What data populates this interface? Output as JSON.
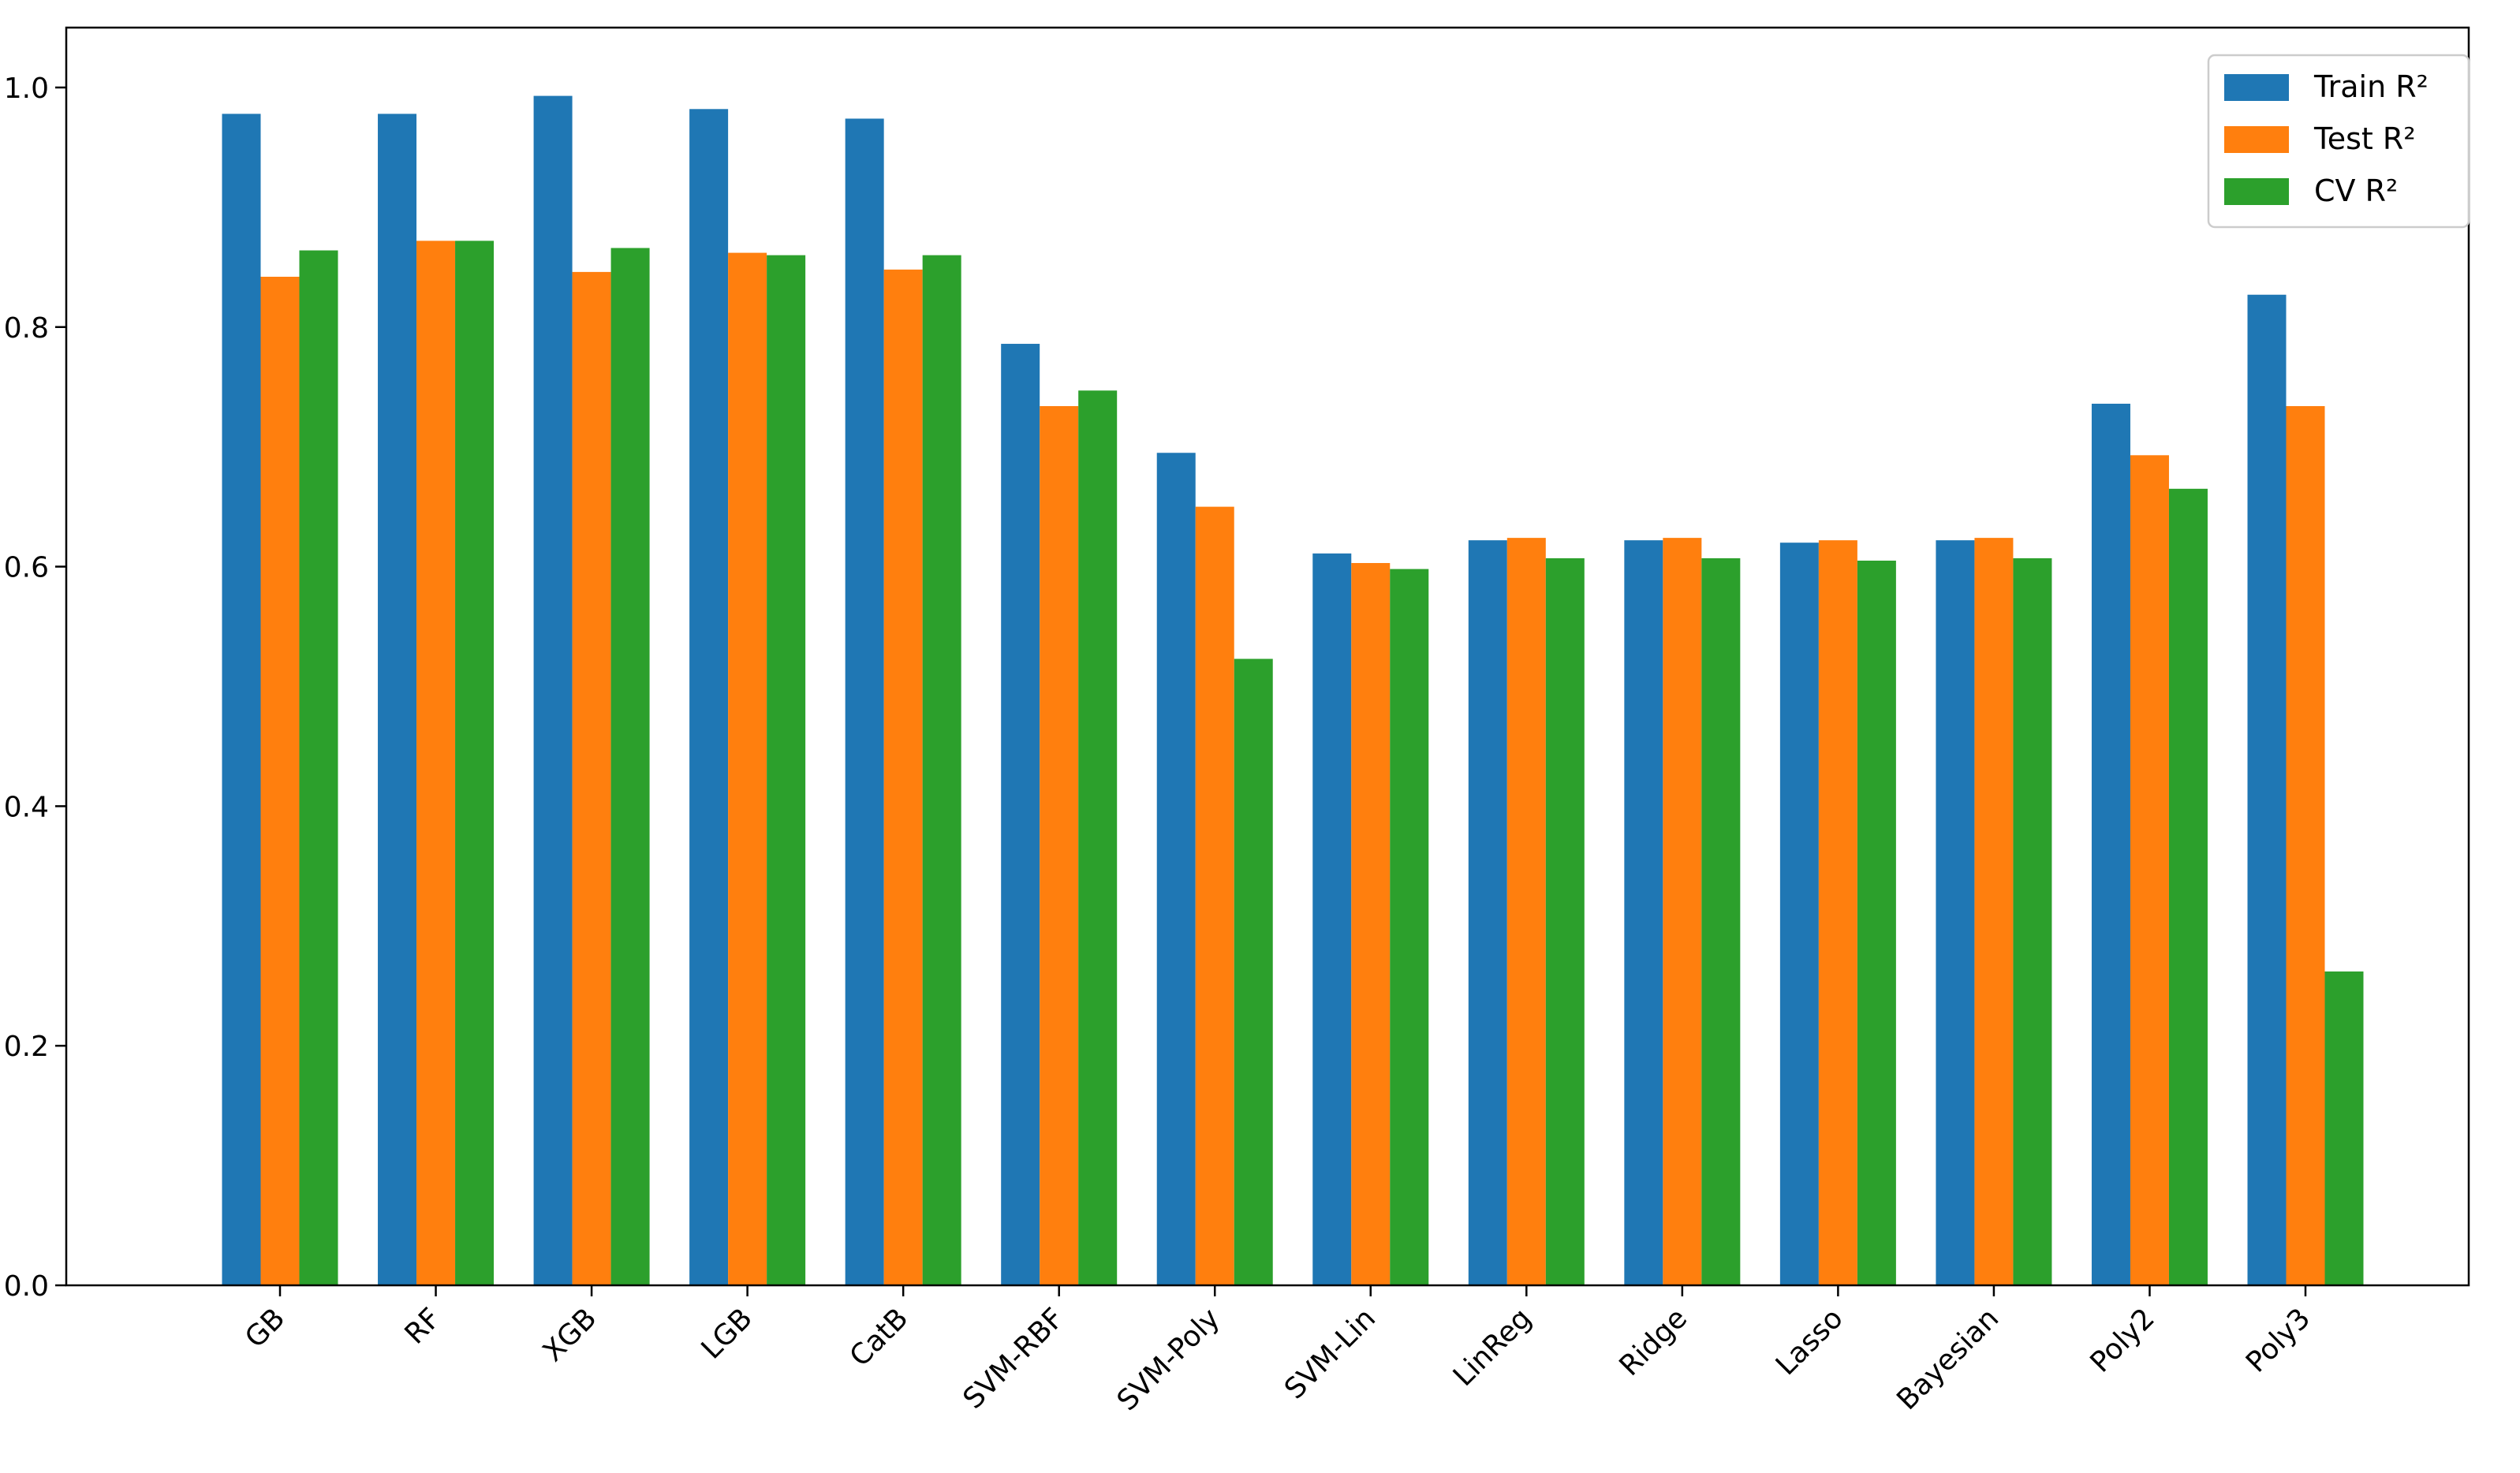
{
  "chart_data": {
    "type": "bar",
    "title": "",
    "xlabel": "",
    "ylabel": "",
    "ylim": [
      0,
      1.05
    ],
    "yticks": [
      "0.0",
      "0.2",
      "0.4",
      "0.6",
      "0.8",
      "1.0"
    ],
    "grid": false,
    "legend_position": "top-right",
    "categories": [
      "GB",
      "RF",
      "XGB",
      "LGB",
      "CatB",
      "SVM-RBF",
      "SVM-Poly",
      "SVM-Lin",
      "LinReg",
      "Ridge",
      "Lasso",
      "Bayesian",
      "Poly2",
      "Poly3"
    ],
    "series": [
      {
        "name": "Train R²",
        "color": "#1f77b4",
        "values": [
          0.978,
          0.978,
          0.993,
          0.982,
          0.974,
          0.786,
          0.695,
          0.611,
          0.622,
          0.622,
          0.62,
          0.622,
          0.736,
          0.827
        ]
      },
      {
        "name": "Test R²",
        "color": "#ff7f0e",
        "values": [
          0.842,
          0.872,
          0.846,
          0.862,
          0.848,
          0.734,
          0.65,
          0.603,
          0.624,
          0.624,
          0.622,
          0.624,
          0.693,
          0.734
        ]
      },
      {
        "name": "CV R²",
        "color": "#2ca02c",
        "values": [
          0.864,
          0.872,
          0.866,
          0.86,
          0.86,
          0.747,
          0.523,
          0.598,
          0.607,
          0.607,
          0.605,
          0.607,
          0.665,
          0.262
        ]
      }
    ]
  }
}
